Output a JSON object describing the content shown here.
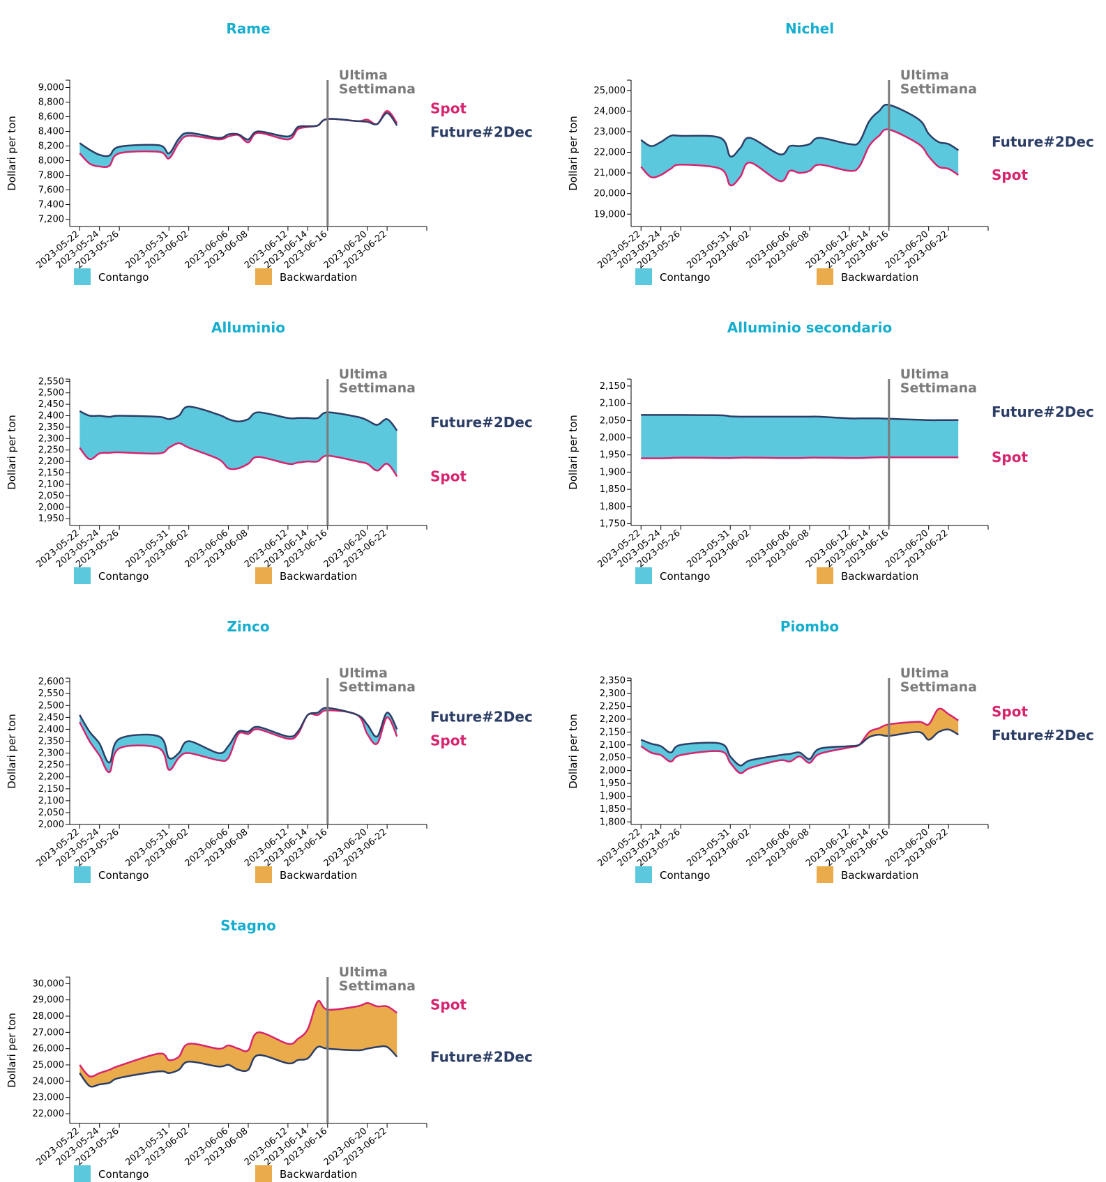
{
  "colors": {
    "title": "#15aece",
    "spot": "#d6246e",
    "future": "#2c3e65",
    "contango": "#5bc8de",
    "backwardation": "#eaab4a",
    "marker": "#7b7b7b"
  },
  "shared": {
    "dates": [
      "2023-05-22",
      "2023-05-23",
      "2023-05-24",
      "2023-05-25",
      "2023-05-26",
      "2023-05-30",
      "2023-05-31",
      "2023-06-01",
      "2023-06-02",
      "2023-06-05",
      "2023-06-06",
      "2023-06-07",
      "2023-06-08",
      "2023-06-09",
      "2023-06-12",
      "2023-06-13",
      "2023-06-14",
      "2023-06-15",
      "2023-06-16",
      "2023-06-19",
      "2023-06-20",
      "2023-06-21",
      "2023-06-22",
      "2023-06-23"
    ],
    "x_ticks": [
      "2023-05-22",
      "2023-05-24",
      "2023-05-26",
      "2023-05-31",
      "2023-06-02",
      "2023-06-06",
      "2023-06-08",
      "2023-06-12",
      "2023-06-14",
      "2023-06-16",
      "2023-06-20",
      "2023-06-22"
    ],
    "marker_date": "2023-06-16",
    "marker_label": [
      "Ultima",
      "Settimana"
    ],
    "ylabel": "Dollari per ton",
    "spot_label": "Spot",
    "future_label": "Future#2Dec",
    "legend": [
      "Contango",
      "Backwardation"
    ]
  },
  "chart_data": [
    {
      "type": "area",
      "title": "Rame",
      "ylim": [
        7100,
        9100
      ],
      "y_ticks": [
        7200,
        7400,
        7600,
        7800,
        8000,
        8200,
        8400,
        8600,
        8800,
        9000
      ],
      "series": [
        {
          "name": "Spot",
          "values": [
            8100,
            7960,
            7920,
            7930,
            8100,
            8120,
            8030,
            8240,
            8340,
            8290,
            8330,
            8350,
            8250,
            8380,
            8290,
            8430,
            8460,
            8480,
            8570,
            8540,
            8560,
            8500,
            8680,
            8510
          ]
        },
        {
          "name": "Future#2Dec",
          "values": [
            8240,
            8150,
            8080,
            8070,
            8190,
            8210,
            8100,
            8300,
            8380,
            8310,
            8360,
            8360,
            8290,
            8400,
            8330,
            8460,
            8470,
            8480,
            8570,
            8540,
            8530,
            8500,
            8650,
            8480
          ]
        }
      ]
    },
    {
      "type": "area",
      "title": "Nichel",
      "ylim": [
        18400,
        25500
      ],
      "y_ticks": [
        19000,
        20000,
        21000,
        22000,
        23000,
        24000,
        25000
      ],
      "series": [
        {
          "name": "Spot",
          "values": [
            21300,
            20800,
            20900,
            21200,
            21400,
            21200,
            20400,
            20800,
            21500,
            20600,
            21100,
            21000,
            21100,
            21400,
            21100,
            21300,
            22300,
            22800,
            23100,
            22400,
            21800,
            21300,
            21200,
            20900
          ]
        },
        {
          "name": "Future#2Dec",
          "values": [
            22600,
            22300,
            22500,
            22800,
            22800,
            22700,
            21800,
            22200,
            22700,
            21900,
            22300,
            22300,
            22400,
            22700,
            22400,
            22500,
            23500,
            24000,
            24300,
            23600,
            22900,
            22500,
            22400,
            22100
          ]
        }
      ]
    },
    {
      "type": "area",
      "title": "Alluminio",
      "ylim": [
        1920,
        2560
      ],
      "y_ticks": [
        1950,
        2000,
        2050,
        2100,
        2150,
        2200,
        2250,
        2300,
        2350,
        2400,
        2450,
        2500,
        2550
      ],
      "series": [
        {
          "name": "Spot",
          "values": [
            2260,
            2210,
            2235,
            2238,
            2240,
            2235,
            2260,
            2280,
            2260,
            2210,
            2170,
            2170,
            2190,
            2220,
            2190,
            2195,
            2200,
            2200,
            2225,
            2200,
            2190,
            2160,
            2190,
            2135
          ]
        },
        {
          "name": "Future#2Dec",
          "values": [
            2420,
            2400,
            2400,
            2395,
            2400,
            2395,
            2385,
            2400,
            2440,
            2405,
            2385,
            2375,
            2385,
            2415,
            2390,
            2390,
            2390,
            2390,
            2415,
            2395,
            2380,
            2360,
            2385,
            2335
          ]
        }
      ]
    },
    {
      "type": "area",
      "title": "Alluminio secondario",
      "ylim": [
        1745,
        2170
      ],
      "y_ticks": [
        1750,
        1800,
        1850,
        1900,
        1950,
        2000,
        2050,
        2100,
        2150
      ],
      "series": [
        {
          "name": "Spot",
          "values": [
            1940,
            1940,
            1940,
            1941,
            1942,
            1941,
            1941,
            1942,
            1942,
            1941,
            1941,
            1941,
            1942,
            1942,
            1941,
            1941,
            1942,
            1943,
            1943,
            1943,
            1943,
            1943,
            1943,
            1943
          ]
        },
        {
          "name": "Future#2Dec",
          "values": [
            2066,
            2066,
            2066,
            2066,
            2066,
            2065,
            2062,
            2061,
            2061,
            2061,
            2061,
            2061,
            2061,
            2061,
            2056,
            2056,
            2056,
            2056,
            2055,
            2052,
            2051,
            2051,
            2051,
            2051
          ]
        }
      ]
    },
    {
      "type": "area",
      "title": "Zinco",
      "ylim": [
        2000,
        2615
      ],
      "y_ticks": [
        2000,
        2050,
        2100,
        2150,
        2200,
        2250,
        2300,
        2350,
        2400,
        2450,
        2500,
        2550,
        2600
      ],
      "series": [
        {
          "name": "Spot",
          "values": [
            2430,
            2350,
            2290,
            2220,
            2320,
            2320,
            2230,
            2280,
            2300,
            2270,
            2280,
            2380,
            2380,
            2400,
            2360,
            2380,
            2460,
            2460,
            2480,
            2460,
            2380,
            2340,
            2450,
            2370
          ]
        },
        {
          "name": "Future#2Dec",
          "values": [
            2460,
            2390,
            2340,
            2260,
            2360,
            2370,
            2280,
            2300,
            2350,
            2300,
            2330,
            2390,
            2390,
            2410,
            2370,
            2390,
            2460,
            2470,
            2490,
            2460,
            2420,
            2370,
            2470,
            2400
          ]
        }
      ]
    },
    {
      "type": "area",
      "title": "Piombo",
      "ylim": [
        1790,
        2360
      ],
      "y_ticks": [
        1800,
        1850,
        1900,
        1950,
        2000,
        2050,
        2100,
        2150,
        2200,
        2250,
        2300,
        2350
      ],
      "series": [
        {
          "name": "Spot",
          "values": [
            2095,
            2070,
            2060,
            2035,
            2060,
            2075,
            2030,
            1990,
            2010,
            2040,
            2035,
            2055,
            2030,
            2065,
            2090,
            2100,
            2150,
            2165,
            2180,
            2190,
            2180,
            2240,
            2220,
            2195
          ]
        },
        {
          "name": "Future#2Dec",
          "values": [
            2120,
            2105,
            2095,
            2070,
            2100,
            2105,
            2055,
            2020,
            2040,
            2060,
            2065,
            2070,
            2045,
            2085,
            2095,
            2100,
            2130,
            2140,
            2135,
            2150,
            2120,
            2150,
            2160,
            2140
          ]
        }
      ]
    },
    {
      "type": "area",
      "title": "Stagno",
      "ylim": [
        21400,
        30400
      ],
      "y_ticks": [
        22000,
        23000,
        24000,
        25000,
        26000,
        27000,
        28000,
        29000,
        30000
      ],
      "series": [
        {
          "name": "Spot",
          "values": [
            25000,
            24300,
            24500,
            24700,
            24950,
            25700,
            25300,
            25500,
            26300,
            26000,
            26200,
            26000,
            25900,
            27000,
            26300,
            26600,
            27200,
            28900,
            28400,
            28600,
            28800,
            28600,
            28600,
            28200
          ]
        },
        {
          "name": "Future#2Dec",
          "values": [
            24500,
            23700,
            23800,
            23900,
            24200,
            24600,
            24500,
            24700,
            25200,
            24900,
            25000,
            24700,
            24700,
            25600,
            25100,
            25300,
            25400,
            26100,
            26000,
            25900,
            26000,
            26100,
            26100,
            25500
          ]
        }
      ]
    }
  ]
}
